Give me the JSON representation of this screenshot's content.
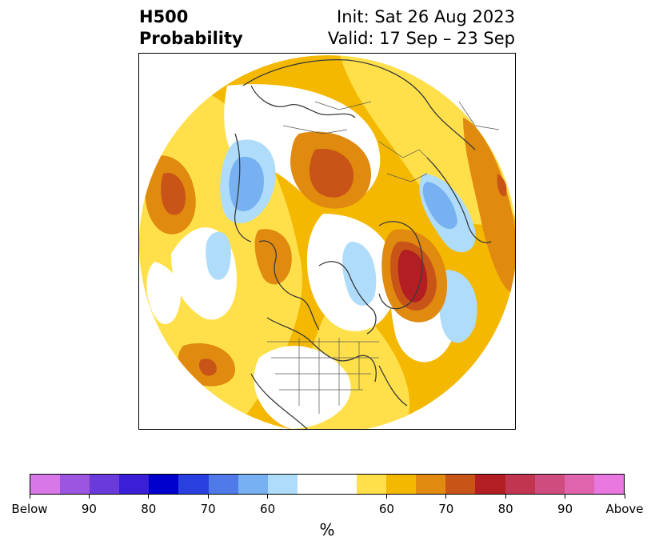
{
  "title": {
    "left_line1": "H500",
    "left_line2": "Probability",
    "init": "Init: Sat 26 Aug 2023",
    "valid": "Valid: 17 Sep – 23 Sep"
  },
  "colorbar": {
    "unit": "%",
    "colors": [
      "#d878e8",
      "#9b55e0",
      "#6a3ada",
      "#3a1fd6",
      "#0000cc",
      "#2a3fe0",
      "#4f7ae8",
      "#78b1f2",
      "#aedcfa",
      "#ffffff",
      "#ffffff",
      "#ffe04a",
      "#f4b800",
      "#e08a10",
      "#c95418",
      "#b21e22",
      "#c23550",
      "#cf4d7e",
      "#df63ad",
      "#e878e0"
    ],
    "tick_labels": [
      "Below",
      "90",
      "80",
      "70",
      "60",
      "60",
      "70",
      "80",
      "90",
      "Above"
    ]
  },
  "map": {
    "projection": "north-polar-stereographic",
    "features": [
      "coastlines",
      "country-borders",
      "us-state-borders"
    ],
    "anomalies": [
      {
        "region": "northeast-pacific-gulf-of-alaska",
        "category": "above",
        "max_pct": 80
      },
      {
        "region": "greenland-labrador",
        "category": "above",
        "max_pct": 80
      },
      {
        "region": "central-eurasia",
        "category": "above",
        "max_pct": 70
      },
      {
        "region": "north-atlantic-west",
        "category": "above",
        "max_pct": 70
      },
      {
        "region": "north-pacific-west",
        "category": "above",
        "max_pct": 70
      },
      {
        "region": "east-asia-far-east",
        "category": "above",
        "max_pct": 70
      },
      {
        "region": "siberian-arctic",
        "category": "below",
        "max_pct": 60
      },
      {
        "region": "northeastern-europe",
        "category": "below",
        "max_pct": 60
      },
      {
        "region": "barents-norwegian-sea",
        "category": "below",
        "max_pct": 60
      },
      {
        "region": "canadian-archipelago",
        "category": "below",
        "max_pct": 60
      }
    ]
  }
}
